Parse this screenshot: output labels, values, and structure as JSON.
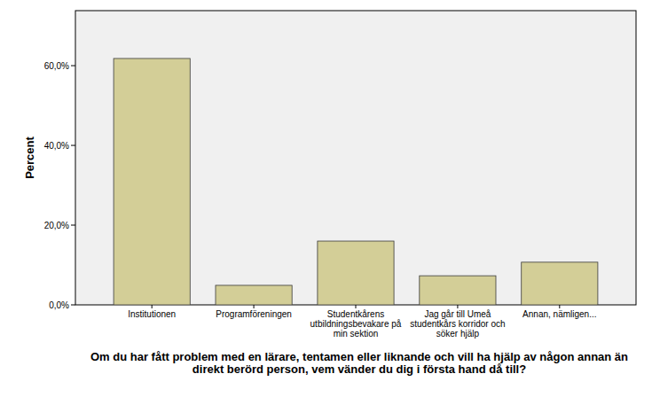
{
  "chart_data": {
    "type": "bar",
    "x_label": "Om du har fått problem med en lärare, tentamen eller liknande och vill ha hjälp av någon annan än direkt berörd person, vem vänder du dig i första hand då till?",
    "y_label": "Percent",
    "categories": [
      "Institutionen",
      "Programföreningen",
      "Studentkårens utbildningsbevakare på min sektion",
      "Jag går till Umeå studentkårs korridor och söker hjälp",
      "Annan, nämligen..."
    ],
    "values": [
      61.8,
      4.9,
      16.0,
      7.3,
      10.7
    ],
    "color": "#d3ce97",
    "ylim": [
      0,
      73.8
    ],
    "yticks": [
      {
        "value": 0,
        "label": "0,0%"
      },
      {
        "value": 20,
        "label": "20,0%"
      },
      {
        "value": 40,
        "label": "40,0%"
      },
      {
        "value": 60,
        "label": "60,0%"
      }
    ],
    "grid": false,
    "data_labels": false
  }
}
